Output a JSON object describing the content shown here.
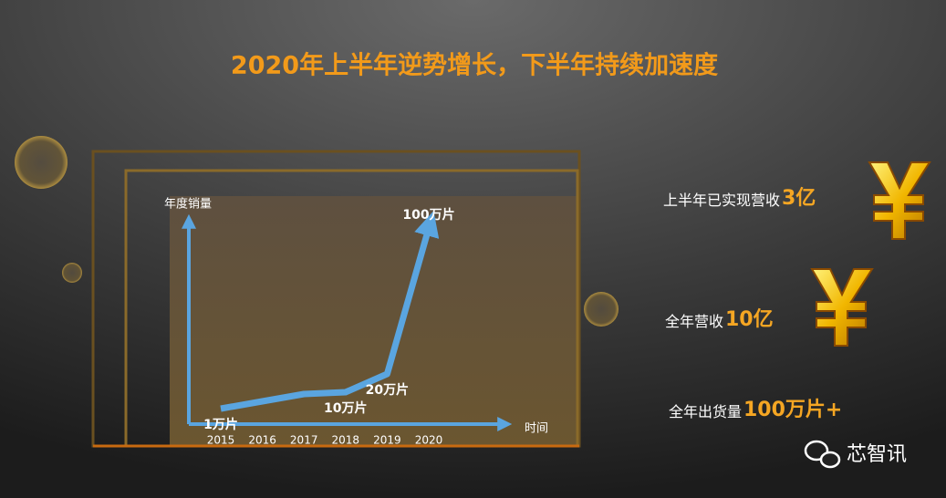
{
  "chart_data": {
    "type": "line",
    "title": "2020年上半年逆势增长，下半年持续加速度",
    "y_label": "年度销量",
    "x_label": "时间",
    "categories": [
      "2015",
      "2016",
      "2017",
      "2018",
      "2019",
      "2020"
    ],
    "values": [
      1,
      5,
      9,
      10,
      20,
      100
    ],
    "value_labels": [
      "1万片",
      null,
      null,
      "10万片",
      "20万片",
      "100万片"
    ],
    "color": "#5aa5e0"
  },
  "highlights": [
    {
      "label": "上半年已实现营收",
      "value": "3亿"
    },
    {
      "label": "全年营收",
      "value": "10亿"
    },
    {
      "label": "全年出货量",
      "value": "100万片+"
    }
  ],
  "watermark": "芯智讯"
}
